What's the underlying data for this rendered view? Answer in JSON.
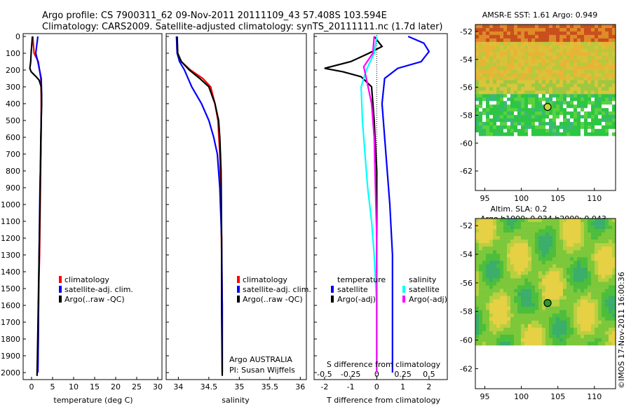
{
  "title": {
    "line1": "Argo profile: CS 7900311_62 09-Nov-2011 20111109_43 57.408S 103.594E",
    "line2": "Climatology: CARS2009. Satellite-adjusted climatology: synTS_20111111.nc (1.7d later)"
  },
  "colors": {
    "red": "#ff0000",
    "blue": "#0000ff",
    "black": "#000000",
    "cyan": "#00ffff",
    "magenta": "#ff00ff"
  },
  "legend": {
    "climatology": "climatology",
    "satellite_adj": "satellite-adj. clim.",
    "argo_raw": "Argo(..raw -QC)",
    "temperature": "temperature",
    "salinity": "salinity",
    "satellite": "satellite",
    "argo_adj": "Argo(-adj)"
  },
  "info": {
    "country": "Argo AUSTRALIA",
    "pi": "PI: Susan Wijffels"
  },
  "maps": {
    "sst_title": "AMSR-E SST: 1.61  Argo: 0.949",
    "sla_title1": "Altim. SLA: 0.2",
    "sla_title2": "Argo h1000: 0.034 h2000: 0.043",
    "credit": "©IMOS 17-Nov-2011 16:00:36"
  },
  "chart_data": [
    {
      "type": "line",
      "xlabel": "temperature (deg C)",
      "ylabel": "",
      "xlim": [
        -2,
        31
      ],
      "ylim": [
        2050,
        0
      ],
      "xticks": [
        0,
        5,
        10,
        15,
        20,
        25,
        30
      ],
      "yticks": [
        0,
        100,
        200,
        300,
        400,
        500,
        600,
        700,
        800,
        900,
        1000,
        1100,
        1200,
        1300,
        1400,
        1500,
        1600,
        1700,
        1800,
        1900,
        2000
      ],
      "series": [
        {
          "name": "climatology",
          "color": "red",
          "x": [
            0.3,
            0.6,
            1.6,
            2.2,
            2.3,
            2.3,
            2.2,
            2.1,
            2.0,
            1.9,
            1.7,
            1.6,
            1.5
          ],
          "y": [
            0,
            100,
            150,
            250,
            350,
            500,
            700,
            900,
            1100,
            1300,
            1500,
            1800,
            2000
          ]
        },
        {
          "name": "satellite-adj. clim.",
          "color": "blue",
          "x": [
            1.5,
            1.0,
            1.5,
            2.3,
            2.4,
            2.3,
            2.2,
            2.0,
            1.9,
            1.8,
            1.7,
            1.6,
            1.5
          ],
          "y": [
            0,
            100,
            150,
            250,
            350,
            500,
            700,
            900,
            1100,
            1300,
            1500,
            1800,
            2000
          ]
        },
        {
          "name": "Argo(..raw -QC)",
          "color": "black",
          "x": [
            0.2,
            -0.1,
            -0.2,
            -0.4,
            -0.1,
            0.3,
            1.1,
            1.8,
            2.3,
            2.4,
            2.2,
            2.1,
            2.0,
            1.8,
            1.6,
            1.4,
            1.3
          ],
          "y": [
            0,
            100,
            150,
            190,
            210,
            220,
            240,
            260,
            300,
            400,
            600,
            800,
            1000,
            1300,
            1600,
            1900,
            2020
          ]
        }
      ]
    },
    {
      "type": "line",
      "xlabel": "salinity",
      "ylabel": "",
      "xlim": [
        33.8,
        36.1
      ],
      "ylim": [
        2050,
        0
      ],
      "xticks": [
        34,
        34.5,
        35,
        35.5,
        36
      ],
      "series": [
        {
          "name": "climatology",
          "color": "red",
          "x": [
            33.97,
            33.98,
            34.05,
            34.2,
            34.4,
            34.53,
            34.6,
            34.65,
            34.68,
            34.7,
            34.71,
            34.72,
            34.72
          ],
          "y": [
            0,
            100,
            150,
            200,
            250,
            300,
            400,
            500,
            700,
            1000,
            1300,
            1600,
            2000
          ]
        },
        {
          "name": "satellite-adj. clim.",
          "color": "blue",
          "x": [
            33.97,
            33.98,
            34.02,
            34.1,
            34.22,
            34.38,
            34.5,
            34.58,
            34.64,
            34.68,
            34.71,
            34.72,
            34.72
          ],
          "y": [
            0,
            100,
            150,
            200,
            300,
            400,
            500,
            600,
            700,
            900,
            1200,
            1600,
            2000
          ]
        },
        {
          "name": "Argo(..raw -QC)",
          "color": "black",
          "x": [
            33.98,
            33.99,
            34.05,
            34.18,
            34.35,
            34.5,
            34.6,
            34.66,
            34.68,
            34.7,
            34.71,
            34.71,
            34.72
          ],
          "y": [
            0,
            100,
            150,
            200,
            250,
            300,
            400,
            500,
            600,
            800,
            1200,
            1600,
            2020
          ]
        }
      ]
    },
    {
      "type": "line",
      "xlabel": "T difference from climatology",
      "x2label": "S difference from climatology",
      "xlim": [
        -2.4,
        2.7
      ],
      "ylim": [
        2050,
        0
      ],
      "xticks": [
        -2,
        -1,
        0,
        1,
        2
      ],
      "x2ticks": [
        -0.5,
        -0.25,
        0,
        0.25,
        0.5
      ],
      "series": [
        {
          "name": "temperature satellite",
          "color": "blue",
          "x": [
            1.2,
            1.8,
            2.0,
            1.7,
            0.8,
            0.3,
            0.2,
            0.3,
            0.4,
            0.5,
            0.6,
            0.6,
            0.6
          ],
          "y": [
            0,
            40,
            90,
            150,
            190,
            250,
            400,
            600,
            800,
            1000,
            1300,
            1700,
            2000
          ]
        },
        {
          "name": "temperature Argo(-adj)",
          "color": "black",
          "x": [
            -0.1,
            0.2,
            -0.3,
            -1.0,
            -2.0,
            -1.3,
            -0.6,
            -0.2,
            -0.1,
            0.0,
            0.0,
            0.0,
            0.0
          ],
          "y": [
            0,
            60,
            100,
            150,
            190,
            210,
            240,
            300,
            500,
            800,
            1200,
            1600,
            2000
          ]
        },
        {
          "name": "salinity satellite",
          "color": "cyan",
          "x": [
            0.0,
            -0.1,
            -0.4,
            -0.6,
            -0.55,
            -0.45,
            -0.35,
            -0.2,
            -0.1,
            0.0,
            0.0
          ],
          "y": [
            0,
            100,
            200,
            300,
            500,
            700,
            900,
            1100,
            1300,
            1600,
            2000
          ]
        },
        {
          "name": "salinity Argo(-adj)",
          "color": "magenta",
          "x": [
            -0.1,
            -0.15,
            -0.5,
            -0.4,
            -0.2,
            -0.1,
            -0.05,
            0.0,
            0.0,
            0.0
          ],
          "y": [
            0,
            100,
            180,
            250,
            400,
            600,
            900,
            1200,
            1600,
            2000
          ]
        }
      ]
    },
    {
      "type": "heatmap",
      "title": "AMSR-E SST: 1.61  Argo: 0.949",
      "xlim": [
        93.7,
        112.9
      ],
      "ylim": [
        -63.4,
        -51.5
      ],
      "xticks": [
        95,
        100,
        105,
        110
      ],
      "yticks": [
        -52,
        -54,
        -56,
        -58,
        -60,
        -62
      ],
      "marker": {
        "lon": 103.594,
        "lat": -57.408
      }
    },
    {
      "type": "heatmap",
      "title": "Altim. SLA: 0.2",
      "xlim": [
        93.7,
        112.9
      ],
      "ylim": [
        -63.4,
        -51.5
      ],
      "xticks": [
        95,
        100,
        105,
        110
      ],
      "yticks": [
        -52,
        -54,
        -56,
        -58,
        -60,
        -62
      ],
      "marker": {
        "lon": 103.594,
        "lat": -57.408
      }
    }
  ]
}
